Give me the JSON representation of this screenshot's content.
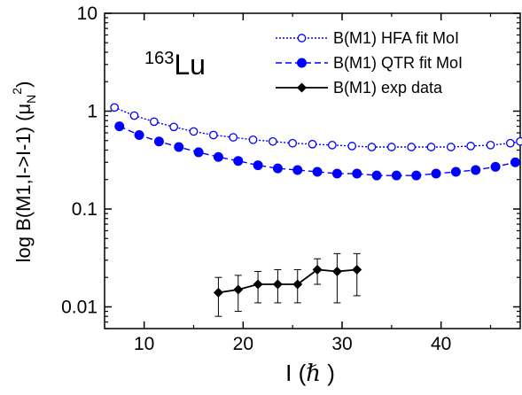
{
  "chart_data": {
    "type": "scatter",
    "yscale": "log",
    "xlim": [
      6,
      48
    ],
    "ylim": [
      0.006,
      10
    ],
    "x_ticks": [
      {
        "value": 10,
        "label": "10"
      },
      {
        "value": 20,
        "label": "20"
      },
      {
        "value": 30,
        "label": "30"
      },
      {
        "value": 40,
        "label": "40"
      }
    ],
    "y_ticks": [
      {
        "value": 0.01,
        "label": "0.01"
      },
      {
        "value": 0.1,
        "label": "0.1"
      },
      {
        "value": 1,
        "label": "1"
      },
      {
        "value": 10,
        "label": "10"
      }
    ],
    "xlabel": {
      "main": "I (",
      "symbol": "ℏ",
      "tail": " )"
    },
    "ylabel": {
      "main": "log B(M1,I->I-1) (",
      "mu": "μ",
      "sub": "N",
      "sup": "2",
      "tail": ")"
    },
    "nucleus_label": {
      "mass": "163",
      "symbol": "Lu"
    },
    "legend_position": "top-right",
    "series": [
      {
        "name": "B(M1) HFA fit MoI",
        "marker": "open-circle",
        "line": "dotted",
        "color": "#0000ff",
        "points": [
          [
            7,
            1.09
          ],
          [
            9,
            0.9
          ],
          [
            11,
            0.78
          ],
          [
            13,
            0.69
          ],
          [
            15,
            0.62
          ],
          [
            17,
            0.57
          ],
          [
            19,
            0.54
          ],
          [
            21,
            0.51
          ],
          [
            23,
            0.49
          ],
          [
            25,
            0.47
          ],
          [
            27,
            0.46
          ],
          [
            29,
            0.45
          ],
          [
            31,
            0.44
          ],
          [
            33,
            0.43
          ],
          [
            35,
            0.43
          ],
          [
            37,
            0.43
          ],
          [
            39,
            0.43
          ],
          [
            41,
            0.43
          ],
          [
            43,
            0.44
          ],
          [
            45,
            0.45
          ],
          [
            47,
            0.47
          ],
          [
            48,
            0.49
          ]
        ]
      },
      {
        "name": "B(M1) QTR fit MoI",
        "marker": "filled-circle",
        "line": "dashed",
        "color": "#0000ff",
        "points": [
          [
            7.5,
            0.7
          ],
          [
            9.5,
            0.57
          ],
          [
            11.5,
            0.49
          ],
          [
            13.5,
            0.43
          ],
          [
            15.5,
            0.38
          ],
          [
            17.5,
            0.34
          ],
          [
            19.5,
            0.31
          ],
          [
            21.5,
            0.28
          ],
          [
            23.5,
            0.26
          ],
          [
            25.5,
            0.25
          ],
          [
            27.5,
            0.24
          ],
          [
            29.5,
            0.23
          ],
          [
            31.5,
            0.23
          ],
          [
            33.5,
            0.22
          ],
          [
            35.5,
            0.22
          ],
          [
            37.5,
            0.22
          ],
          [
            39.5,
            0.23
          ],
          [
            41.5,
            0.24
          ],
          [
            43.5,
            0.25
          ],
          [
            45.5,
            0.27
          ],
          [
            47.5,
            0.3
          ]
        ]
      },
      {
        "name": "B(M1) exp data",
        "marker": "filled-diamond",
        "line": "solid",
        "color": "#000000",
        "points": [
          [
            17.5,
            0.014
          ],
          [
            19.5,
            0.015
          ],
          [
            21.5,
            0.017
          ],
          [
            23.5,
            0.017
          ],
          [
            25.5,
            0.017
          ],
          [
            27.5,
            0.024
          ],
          [
            29.5,
            0.023
          ],
          [
            31.5,
            0.024
          ]
        ],
        "error_low": [
          0.008,
          0.009,
          0.011,
          0.011,
          0.011,
          0.017,
          0.011,
          0.013
        ],
        "error_high": [
          0.02,
          0.021,
          0.023,
          0.024,
          0.024,
          0.031,
          0.035,
          0.035
        ]
      }
    ]
  }
}
